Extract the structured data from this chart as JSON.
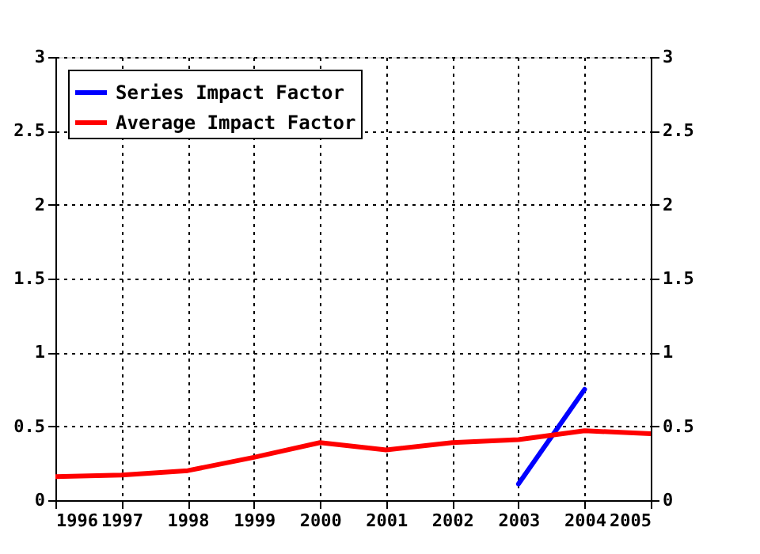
{
  "chart_data": {
    "type": "line",
    "x": [
      1996,
      1997,
      1998,
      1999,
      2000,
      2001,
      2002,
      2003,
      2004,
      2005
    ],
    "series": [
      {
        "name": "Series Impact Factor",
        "color": "#0000ff",
        "x": [
          2003,
          2004
        ],
        "values": [
          0.11,
          0.75
        ]
      },
      {
        "name": "Average Impact Factor",
        "color": "#ff0000",
        "values": [
          0.16,
          0.17,
          0.2,
          0.29,
          0.39,
          0.34,
          0.39,
          0.41,
          0.47,
          0.45
        ]
      }
    ],
    "xlim": [
      1996,
      2005
    ],
    "xticks": [
      1996,
      1997,
      1998,
      1999,
      2000,
      2001,
      2002,
      2003,
      2004,
      2005
    ],
    "ylim": [
      0,
      3
    ],
    "yticks": [
      0,
      0.5,
      1,
      1.5,
      2,
      2.5,
      3
    ],
    "y2lim": [
      0,
      3
    ],
    "y2ticks": [
      0,
      0.5,
      1,
      1.5,
      2,
      2.5,
      3
    ],
    "grid": true,
    "legend": "top left",
    "line_style": "solid",
    "marker": "none"
  }
}
